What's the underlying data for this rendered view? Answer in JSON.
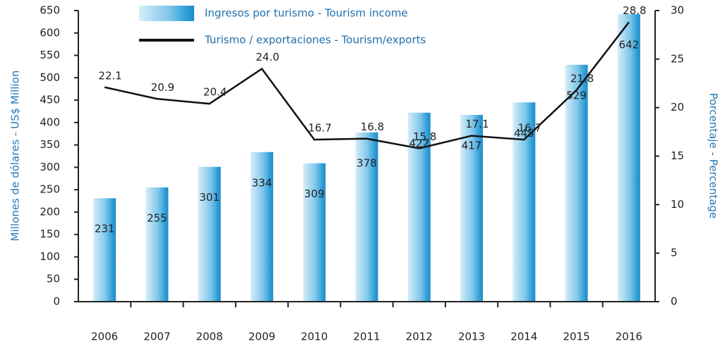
{
  "chart_data": {
    "type": "bar_line",
    "categories": [
      "2006",
      "2007",
      "2008",
      "2009",
      "2010",
      "2011",
      "2012",
      "2013",
      "2014",
      "2015",
      "2016"
    ],
    "series": [
      {
        "name": "Ingresos por turismo - Tourism income",
        "type": "bar",
        "color": "#3aa6dc",
        "values": [
          231,
          255,
          301,
          334,
          309,
          378,
          422,
          417,
          445,
          529,
          642
        ]
      },
      {
        "name": "Turismo / exportaciones - Tourism/exports",
        "type": "line",
        "axis": "y2",
        "color": "#111111",
        "values": [
          22.1,
          20.9,
          20.4,
          24.0,
          16.7,
          16.8,
          15.8,
          17.1,
          16.7,
          21.8,
          28.8
        ],
        "value_labels": [
          "22.1",
          "20.9",
          "20.4",
          "24.0",
          "16.7",
          "16.8",
          "15.8",
          "17.1",
          "16.7",
          "21.8",
          "28.8"
        ]
      }
    ],
    "ylabel": "Millones de dólares - US$ Million",
    "y2label": "Porcentaje - Percentage",
    "ylim": [
      0,
      650
    ],
    "yticks": [
      0,
      50,
      100,
      150,
      200,
      250,
      300,
      350,
      400,
      450,
      500,
      550,
      600,
      650
    ],
    "y2lim": [
      0,
      30
    ],
    "y2ticks": [
      0,
      5,
      10,
      15,
      20,
      25,
      30
    ],
    "legend": "top"
  }
}
